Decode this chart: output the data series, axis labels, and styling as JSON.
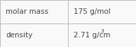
{
  "rows": [
    {
      "label": "molar mass",
      "value": "175 g/mol"
    },
    {
      "label": "density",
      "value": "2.71 g/cm³"
    }
  ],
  "background_color": "#f9f9f9",
  "border_color": "#bbbbbb",
  "text_color": "#444444",
  "font_size": 7.5,
  "col_split": 0.5,
  "fig_width": 1.94,
  "fig_height": 0.68,
  "dpi": 100
}
